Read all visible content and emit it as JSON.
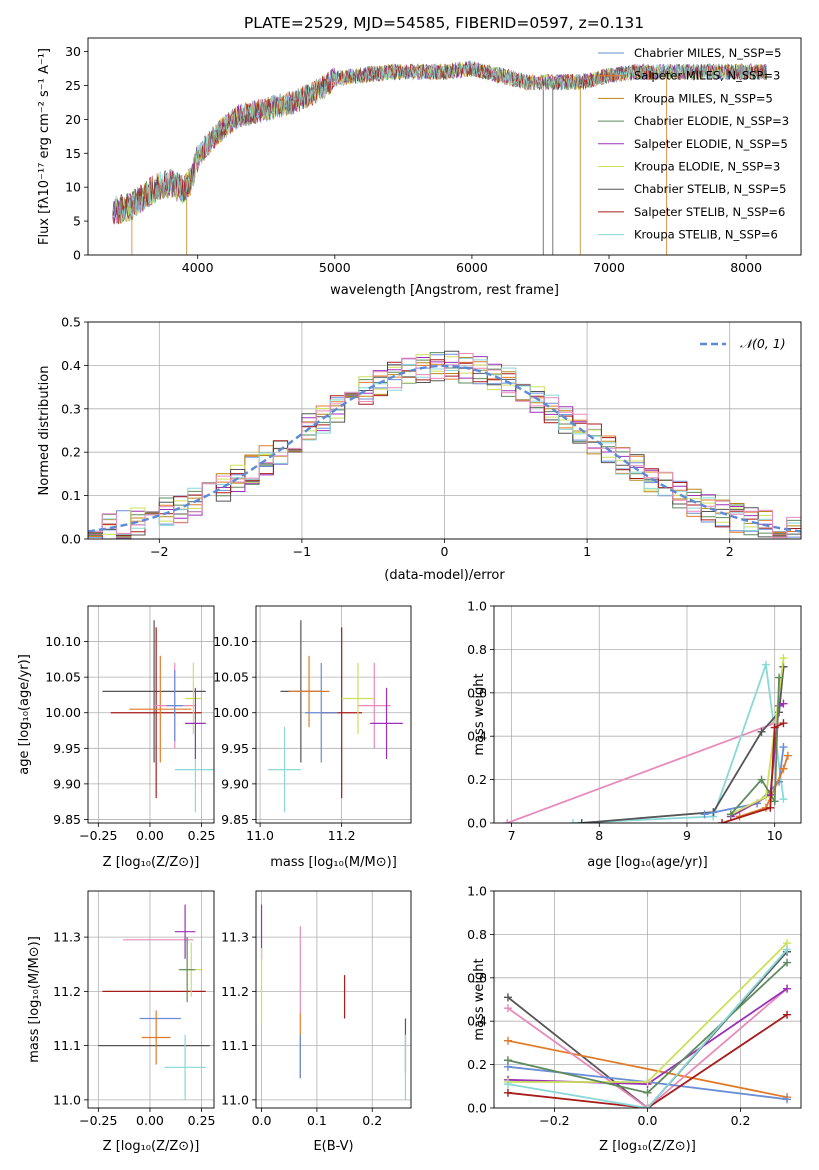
{
  "colors": {
    "chabrier_miles": "#6a8dd6",
    "salpeter_miles": "#e07b2a",
    "kroupa_miles": "#b8871a",
    "chabrier_elodie": "#5e8a5e",
    "salpeter_elodie": "#9b30b8",
    "kroupa_elodie": "#cde05a",
    "chabrier_stelib": "#555555",
    "salpeter_stelib": "#a81c1c",
    "kroupa_stelib": "#8ad8d8",
    "pink": "#e88abb",
    "normal": "#5b8ad8"
  },
  "chart_data": [
    {
      "id": "spectrum",
      "type": "line",
      "title": "PLATE=2529, MJD=54585, FIBERID=0597, z=0.131",
      "xlabel": "wavelength [Angstrom, rest frame]",
      "ylabel": "Flux [fλ10⁻¹⁷ erg cm⁻² s⁻¹ A⁻¹]",
      "xlim": [
        3200,
        8400
      ],
      "ylim": [
        0,
        32
      ],
      "xticks": [
        4000,
        5000,
        6000,
        7000,
        8000
      ],
      "yticks": [
        0,
        5,
        10,
        15,
        20,
        25,
        30
      ],
      "grid": false,
      "legend_placement": "top-right",
      "legend": [
        "Chabrier MILES, N_SSP=5",
        "Salpeter MILES, N_SSP=3",
        "Kroupa MILES, N_SSP=5",
        "Chabrier ELODIE, N_SSP=3",
        "Salpeter ELODIE, N_SSP=5",
        "Kroupa ELODIE, N_SSP=3",
        "Chabrier STELIB, N_SSP=5",
        "Salpeter STELIB, N_SSP=6",
        "Kroupa STELIB, N_SSP=6"
      ],
      "continuum": {
        "x": [
          3380,
          3500,
          3600,
          3700,
          3800,
          3900,
          3950,
          4000,
          4100,
          4200,
          4300,
          4400,
          4500,
          4700,
          4900,
          5000,
          5200,
          5400,
          5600,
          5800,
          6000,
          6200,
          6400,
          6600,
          6800,
          7000,
          7200,
          7400
        ],
        "y": [
          6.5,
          7,
          8.5,
          10,
          10.5,
          9.5,
          11,
          14.5,
          17,
          19,
          20.5,
          21,
          21.5,
          22.5,
          24.5,
          26,
          26.5,
          27,
          27,
          27,
          27.5,
          26.5,
          25.5,
          25.5,
          25.5,
          26.5,
          27,
          27
        ]
      },
      "model_extent": {
        "x": [
          3950,
          8150
        ],
        "y_start": 26.5,
        "y_end": 25.5
      }
    },
    {
      "id": "residuals",
      "type": "line",
      "xlabel": "(data-model)/error",
      "ylabel": "Normed distribution",
      "xlim": [
        -2.5,
        2.5
      ],
      "ylim": [
        0,
        0.5
      ],
      "xticks": [
        -2,
        -1,
        0,
        1,
        2
      ],
      "yticks": [
        0.0,
        0.1,
        0.2,
        0.3,
        0.4,
        0.5
      ],
      "grid": true,
      "legend_placement": "top-right",
      "legend": [
        "𝒩(0, 1)"
      ],
      "bin_width": 0.1
    },
    {
      "id": "age_vs_Z",
      "type": "scatter",
      "xlabel": "Z [log₁₀(Z/Z⊙)]",
      "ylabel": "age  [log₁₀(age/yr)]",
      "xlim": [
        -0.3,
        0.31
      ],
      "ylim": [
        9.845,
        10.15
      ],
      "xticks": [
        -0.25,
        0.0,
        0.25
      ],
      "yticks": [
        9.85,
        9.9,
        9.95,
        10.0,
        10.05,
        10.1
      ],
      "grid": true,
      "points": [
        {
          "x": 0.02,
          "y": 10.03,
          "xerr": 0.25,
          "yerr": 0.1,
          "color": "chabrier_stelib"
        },
        {
          "x": 0.03,
          "y": 10.0,
          "xerr": 0.22,
          "yerr": 0.12,
          "color": "salpeter_stelib"
        },
        {
          "x": 0.05,
          "y": 10.005,
          "xerr": 0.15,
          "yerr": 0.075,
          "color": "salpeter_miles"
        },
        {
          "x": 0.12,
          "y": 10.01,
          "xerr": 0.1,
          "yerr": 0.06,
          "color": "pink"
        },
        {
          "x": 0.22,
          "y": 9.92,
          "xerr": 0.1,
          "yerr": 0.06,
          "color": "kroupa_stelib"
        },
        {
          "x": 0.21,
          "y": 10.02,
          "xerr": 0.04,
          "yerr": 0.05,
          "color": "kroupa_elodie"
        },
        {
          "x": 0.22,
          "y": 9.985,
          "xerr": 0.05,
          "yerr": 0.05,
          "color": "salpeter_elodie"
        },
        {
          "x": 0.12,
          "y": 10.01,
          "xerr": 0.04,
          "yerr": 0.05,
          "color": "chabrier_miles"
        }
      ]
    },
    {
      "id": "age_vs_mass",
      "type": "scatter",
      "xlabel": "mass [log₁₀(M/M⊙)]",
      "ylabel": "",
      "xlim": [
        10.99,
        11.37
      ],
      "ylim": [
        9.845,
        10.15
      ],
      "xticks": [
        11.0,
        11.2
      ],
      "yticks": [
        9.85,
        9.9,
        9.95,
        10.0,
        10.05,
        10.1
      ],
      "grid": true,
      "points": [
        {
          "x": 11.1,
          "y": 10.03,
          "xerr": 0.05,
          "yerr": 0.1,
          "color": "chabrier_stelib"
        },
        {
          "x": 11.2,
          "y": 10.0,
          "xerr": 0.05,
          "yerr": 0.12,
          "color": "salpeter_stelib"
        },
        {
          "x": 11.12,
          "y": 10.03,
          "xerr": 0.05,
          "yerr": 0.05,
          "color": "salpeter_miles"
        },
        {
          "x": 11.28,
          "y": 10.01,
          "xerr": 0.04,
          "yerr": 0.06,
          "color": "pink"
        },
        {
          "x": 11.06,
          "y": 9.92,
          "xerr": 0.04,
          "yerr": 0.06,
          "color": "kroupa_stelib"
        },
        {
          "x": 11.24,
          "y": 10.02,
          "xerr": 0.04,
          "yerr": 0.05,
          "color": "kroupa_elodie"
        },
        {
          "x": 11.31,
          "y": 9.985,
          "xerr": 0.04,
          "yerr": 0.05,
          "color": "salpeter_elodie"
        },
        {
          "x": 11.15,
          "y": 10.0,
          "xerr": 0.04,
          "yerr": 0.07,
          "color": "chabrier_miles"
        }
      ]
    },
    {
      "id": "weight_vs_age",
      "type": "line",
      "xlabel": "age  [log₁₀(age/yr)]",
      "ylabel": "mass weight",
      "xlim": [
        6.8,
        10.3
      ],
      "ylim": [
        0,
        1
      ],
      "xticks": [
        7,
        8,
        9,
        10
      ],
      "yticks": [
        0.0,
        0.2,
        0.4,
        0.6,
        0.8,
        1.0
      ],
      "grid": true,
      "series": [
        {
          "color": "pink",
          "x": [
            6.95,
            10.0
          ],
          "y": [
            0.0,
            0.46
          ]
        },
        {
          "color": "kroupa_stelib",
          "x": [
            7.7,
            9.3,
            9.9,
            10.1
          ],
          "y": [
            0.0,
            0.03,
            0.73,
            0.11
          ]
        },
        {
          "color": "chabrier_stelib",
          "x": [
            7.8,
            9.3,
            9.85,
            10.05,
            10.1
          ],
          "y": [
            0.0,
            0.05,
            0.42,
            0.51,
            0.72
          ]
        },
        {
          "color": "chabrier_miles",
          "x": [
            9.2,
            9.8,
            10.05,
            10.1
          ],
          "y": [
            0.04,
            0.09,
            0.19,
            0.35
          ]
        },
        {
          "color": "salpeter_miles",
          "x": [
            9.6,
            9.9,
            10.1,
            10.15
          ],
          "y": [
            0.03,
            0.07,
            0.25,
            0.31
          ]
        },
        {
          "color": "salpeter_elodie",
          "x": [
            9.5,
            9.95,
            10.05,
            10.1
          ],
          "y": [
            0.03,
            0.13,
            0.54,
            0.55
          ]
        },
        {
          "color": "kroupa_elodie",
          "x": [
            9.5,
            9.9,
            10.1
          ],
          "y": [
            0.04,
            0.12,
            0.76
          ]
        },
        {
          "color": "chabrier_elodie",
          "x": [
            9.5,
            9.85,
            10.0,
            10.05
          ],
          "y": [
            0.04,
            0.2,
            0.1,
            0.67
          ]
        },
        {
          "color": "salpeter_stelib",
          "x": [
            9.4,
            9.95,
            10.0,
            10.1
          ],
          "y": [
            0.0,
            0.07,
            0.44,
            0.46
          ]
        }
      ]
    },
    {
      "id": "mass_vs_Z",
      "type": "scatter",
      "xlabel": "Z [log₁₀(Z/Z⊙)]",
      "ylabel": "mass [log₁₀(M/M⊙)]",
      "xlim": [
        -0.3,
        0.31
      ],
      "ylim": [
        10.985,
        11.385
      ],
      "xticks": [
        -0.25,
        0.0,
        0.25
      ],
      "yticks": [
        11.0,
        11.1,
        11.2,
        11.3
      ],
      "grid": true,
      "points": [
        {
          "x": 0.02,
          "y": 11.1,
          "xerr": 0.27,
          "yerr": 0.0,
          "color": "chabrier_stelib"
        },
        {
          "x": 0.02,
          "y": 11.2,
          "xerr": 0.25,
          "yerr": 0.0,
          "color": "salpeter_stelib"
        },
        {
          "x": 0.04,
          "y": 11.295,
          "xerr": 0.17,
          "yerr": 0.0,
          "color": "pink"
        },
        {
          "x": 0.05,
          "y": 11.15,
          "xerr": 0.1,
          "yerr": 0.0,
          "color": "chabrier_miles"
        },
        {
          "x": 0.03,
          "y": 11.115,
          "xerr": 0.07,
          "yerr": 0.05,
          "color": "salpeter_miles"
        },
        {
          "x": 0.17,
          "y": 11.06,
          "xerr": 0.1,
          "yerr": 0.06,
          "color": "kroupa_stelib"
        },
        {
          "x": 0.17,
          "y": 11.31,
          "xerr": 0.05,
          "yerr": 0.05,
          "color": "salpeter_elodie"
        },
        {
          "x": 0.2,
          "y": 11.24,
          "xerr": 0.05,
          "yerr": 0.05,
          "color": "kroupa_elodie"
        },
        {
          "x": 0.18,
          "y": 11.24,
          "xerr": 0.04,
          "yerr": 0.06,
          "color": "chabrier_elodie"
        }
      ]
    },
    {
      "id": "mass_vs_ebv",
      "type": "scatter",
      "xlabel": "E(B-V)",
      "ylabel": "",
      "xlim": [
        -0.01,
        0.27
      ],
      "ylim": [
        10.985,
        11.385
      ],
      "xticks": [
        0.0,
        0.1,
        0.2
      ],
      "yticks": [
        11.0,
        11.1,
        11.2,
        11.3
      ],
      "grid": true,
      "points": [
        {
          "x": 0.0,
          "y": 11.31,
          "xerr": 0.0,
          "yerr": 0.05,
          "color": "salpeter_elodie"
        },
        {
          "x": 0.0,
          "y": 11.21,
          "xerr": 0.0,
          "yerr": 0.07,
          "color": "kroupa_elodie"
        },
        {
          "x": 0.07,
          "y": 11.24,
          "xerr": 0.0,
          "yerr": 0.08,
          "color": "pink"
        },
        {
          "x": 0.07,
          "y": 11.1,
          "xerr": 0.0,
          "yerr": 0.06,
          "color": "salpeter_miles"
        },
        {
          "x": 0.07,
          "y": 11.08,
          "xerr": 0.0,
          "yerr": 0.04,
          "color": "chabrier_miles"
        },
        {
          "x": 0.15,
          "y": 11.19,
          "xerr": 0.0,
          "yerr": 0.04,
          "color": "salpeter_stelib"
        },
        {
          "x": 0.26,
          "y": 11.1,
          "xerr": 0.0,
          "yerr": 0.05,
          "color": "chabrier_stelib"
        },
        {
          "x": 0.26,
          "y": 11.06,
          "xerr": 0.0,
          "yerr": 0.06,
          "color": "kroupa_stelib"
        }
      ]
    },
    {
      "id": "weight_vs_Z",
      "type": "line",
      "xlabel": "Z [log₁₀(Z/Z⊙)]",
      "ylabel": "mass weight",
      "xlim": [
        -0.33,
        0.33
      ],
      "ylim": [
        0,
        1
      ],
      "xticks": [
        -0.2,
        0.0,
        0.2
      ],
      "yticks": [
        0.0,
        0.2,
        0.4,
        0.6,
        0.8,
        1.0
      ],
      "grid": true,
      "series": [
        {
          "color": "chabrier_stelib",
          "x": [
            -0.3,
            0.0,
            0.3
          ],
          "y": [
            0.51,
            0.0,
            0.72
          ]
        },
        {
          "color": "salpeter_miles",
          "x": [
            -0.3,
            0.3
          ],
          "y": [
            0.31,
            0.05
          ]
        },
        {
          "color": "pink",
          "x": [
            -0.3,
            0.0,
            0.3
          ],
          "y": [
            0.46,
            0.0,
            0.55
          ]
        },
        {
          "color": "chabrier_miles",
          "x": [
            -0.3,
            0.0,
            0.3
          ],
          "y": [
            0.19,
            0.12,
            0.04
          ]
        },
        {
          "color": "salpeter_elodie",
          "x": [
            -0.3,
            0.0,
            0.3
          ],
          "y": [
            0.13,
            0.11,
            0.55
          ]
        },
        {
          "color": "kroupa_elodie",
          "x": [
            -0.3,
            0.0,
            0.3
          ],
          "y": [
            0.12,
            0.12,
            0.76
          ]
        },
        {
          "color": "chabrier_elodie",
          "x": [
            -0.3,
            0.0,
            0.3
          ],
          "y": [
            0.22,
            0.07,
            0.67
          ]
        },
        {
          "color": "salpeter_stelib",
          "x": [
            -0.3,
            0.0,
            0.3
          ],
          "y": [
            0.07,
            0.0,
            0.43
          ]
        },
        {
          "color": "kroupa_stelib",
          "x": [
            -0.3,
            0.0,
            0.3
          ],
          "y": [
            0.11,
            0.0,
            0.73
          ]
        }
      ]
    }
  ]
}
